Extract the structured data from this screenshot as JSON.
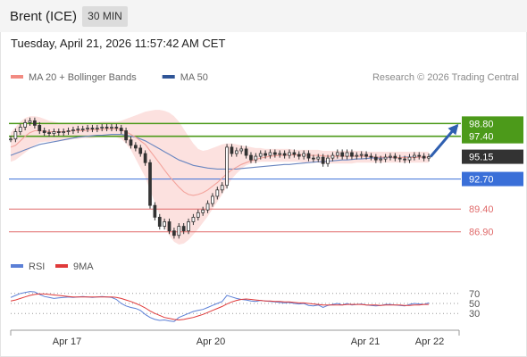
{
  "header": {
    "instrument": "Brent (ICE)",
    "timeframe": "30 MIN",
    "datetime": "Tuesday, April 21, 2026 11:57:42 AM CET",
    "copyright": "Research © 2026 Trading Central"
  },
  "legend": {
    "price": [
      {
        "label": "MA 20 + Bollinger Bands",
        "color": "#f28b82"
      },
      {
        "label": "MA 50",
        "color": "#2f5597"
      }
    ],
    "rsi": [
      {
        "label": "RSI",
        "color": "#5b7fd6"
      },
      {
        "label": "9MA",
        "color": "#e03a3a"
      }
    ]
  },
  "colors": {
    "resistance": "#4c9a1a",
    "pivot": "#3a6fd8",
    "support": "#e06a6a",
    "last_price": "#333333",
    "arrow": "#2f5fb0",
    "bollinger_fill": "#fbdcd9",
    "candle": "#333333"
  },
  "chart_data": [
    {
      "type": "candlestick",
      "title": "",
      "x_ticks": [
        "Apr 17",
        "Apr 20",
        "Apr 21",
        "Apr 22"
      ],
      "ylim": [
        85.3,
        100.8
      ],
      "levels": [
        {
          "value": 98.8,
          "label": "98.80",
          "kind": "resistance"
        },
        {
          "value": 97.4,
          "label": "97.40",
          "kind": "resistance"
        },
        {
          "value": 95.15,
          "label": "95.15",
          "kind": "last"
        },
        {
          "value": 92.7,
          "label": "92.70",
          "kind": "pivot"
        },
        {
          "value": 89.4,
          "label": "89.40",
          "kind": "support"
        },
        {
          "value": 86.9,
          "label": "86.90",
          "kind": "support"
        }
      ],
      "close": [
        97.1,
        97.9,
        98.4,
        98.9,
        99.1,
        98.6,
        98.0,
        97.8,
        97.7,
        97.9,
        97.8,
        97.9,
        98.0,
        98.1,
        98.2,
        98.2,
        98.3,
        98.2,
        98.3,
        98.4,
        98.3,
        98.4,
        98.3,
        98.0,
        97.0,
        96.4,
        96.1,
        95.5,
        94.5,
        89.8,
        88.5,
        87.5,
        88.0,
        87.0,
        86.5,
        87.5,
        87.0,
        88.0,
        88.5,
        89.0,
        89.3,
        90.0,
        90.8,
        91.5,
        92.0,
        96.2,
        95.5,
        95.8,
        96.0,
        95.3,
        94.8,
        95.2,
        95.5,
        95.3,
        95.6,
        95.4,
        95.5,
        95.3,
        95.6,
        95.4,
        95.2,
        95.5,
        95.0,
        94.9,
        95.1,
        94.4,
        95.0,
        95.3,
        95.6,
        95.2,
        95.6,
        95.2,
        95.3,
        95.4,
        95.2,
        95.1,
        94.8,
        94.9,
        95.1,
        95.2,
        95.0,
        94.9,
        94.8,
        95.1,
        95.3,
        95.2,
        95.0,
        95.15
      ],
      "ma20": [
        96.2,
        96.4,
        96.9,
        97.4,
        97.8,
        98.0,
        98.0,
        97.95,
        97.9,
        97.9,
        97.9,
        97.9,
        97.95,
        98.0,
        98.0,
        98.0,
        98.05,
        98.1,
        98.1,
        98.15,
        98.2,
        98.2,
        98.2,
        98.15,
        97.9,
        97.6,
        97.3,
        96.9,
        96.5,
        95.8,
        95.1,
        94.4,
        93.7,
        93.0,
        92.4,
        91.8,
        91.3,
        91.0,
        90.9,
        91.0,
        91.2,
        91.5,
        91.9,
        92.3,
        92.8,
        93.3,
        93.7,
        94.0,
        94.3,
        94.5,
        94.7,
        94.85,
        95.0,
        95.1,
        95.2,
        95.25,
        95.3,
        95.3,
        95.35,
        95.35,
        95.35,
        95.35,
        95.3,
        95.3,
        95.3,
        95.25,
        95.2,
        95.2,
        95.2,
        95.2,
        95.2,
        95.2,
        95.2,
        95.2,
        95.2,
        95.15,
        95.1,
        95.1,
        95.1,
        95.1,
        95.05,
        95.05,
        95.05,
        95.05,
        95.05,
        95.1,
        95.1,
        95.1
      ],
      "ma50": [
        95.3,
        95.5,
        95.7,
        95.9,
        96.1,
        96.3,
        96.5,
        96.6,
        96.7,
        96.8,
        96.9,
        97.0,
        97.1,
        97.2,
        97.3,
        97.35,
        97.4,
        97.45,
        97.5,
        97.5,
        97.55,
        97.6,
        97.6,
        97.6,
        97.5,
        97.4,
        97.3,
        97.1,
        96.9,
        96.6,
        96.3,
        96.0,
        95.7,
        95.4,
        95.1,
        94.8,
        94.6,
        94.4,
        94.2,
        94.1,
        94.0,
        93.9,
        93.85,
        93.8,
        93.8,
        93.8,
        93.8,
        93.8,
        93.85,
        93.9,
        93.95,
        94.0,
        94.05,
        94.1,
        94.15,
        94.2,
        94.25,
        94.3,
        94.3,
        94.35,
        94.4,
        94.45,
        94.5,
        94.55,
        94.6,
        94.6,
        94.65,
        94.7,
        94.75,
        94.8,
        94.8,
        94.85,
        94.9,
        94.9,
        94.95,
        95.0,
        95.0,
        95.0,
        95.05,
        95.05,
        95.05,
        95.05,
        95.1,
        95.1,
        95.1,
        95.1,
        95.1,
        95.1
      ],
      "bollinger_upper": [
        97.8,
        98.4,
        99.0,
        99.4,
        99.6,
        99.6,
        99.5,
        99.3,
        99.1,
        99.0,
        98.9,
        98.9,
        98.9,
        98.9,
        98.9,
        98.9,
        98.9,
        98.9,
        98.9,
        99.0,
        99.0,
        99.0,
        99.0,
        99.1,
        99.3,
        99.5,
        99.7,
        99.9,
        100.1,
        100.2,
        100.3,
        100.3,
        100.2,
        100.0,
        99.6,
        99.0,
        98.2,
        97.4,
        96.6,
        96.0,
        95.8,
        95.9,
        96.1,
        96.3,
        96.5,
        96.6,
        96.6,
        96.5,
        96.4,
        96.3,
        96.2,
        96.1,
        96.1,
        96.0,
        96.0,
        96.0,
        96.0,
        96.0,
        96.0,
        95.9,
        95.9,
        95.9,
        95.9,
        95.9,
        95.9,
        95.8,
        95.8,
        95.8,
        95.8,
        95.8,
        95.8,
        95.8,
        95.8,
        95.8,
        95.7,
        95.7,
        95.7,
        95.7,
        95.7,
        95.7,
        95.7,
        95.7,
        95.7,
        95.7,
        95.7,
        95.7,
        95.7,
        95.7
      ],
      "bollinger_lower": [
        94.6,
        94.8,
        95.2,
        95.6,
        96.0,
        96.4,
        96.7,
        96.8,
        96.8,
        96.9,
        96.9,
        96.9,
        97.0,
        97.1,
        97.1,
        97.2,
        97.2,
        97.2,
        97.3,
        97.3,
        97.3,
        97.3,
        97.3,
        97.1,
        96.6,
        95.9,
        94.9,
        93.9,
        92.9,
        91.5,
        90.1,
        88.7,
        87.5,
        86.5,
        85.8,
        85.5,
        85.6,
        86.0,
        86.6,
        87.2,
        87.9,
        88.6,
        89.4,
        90.2,
        91.0,
        91.9,
        92.7,
        93.3,
        93.8,
        94.2,
        94.4,
        94.5,
        94.6,
        94.6,
        94.6,
        94.6,
        94.6,
        94.6,
        94.6,
        94.6,
        94.6,
        94.5,
        94.5,
        94.5,
        94.5,
        94.4,
        94.4,
        94.4,
        94.4,
        94.4,
        94.4,
        94.4,
        94.5,
        94.5,
        94.5,
        94.5,
        94.5,
        94.5,
        94.5,
        94.5,
        94.5,
        94.5,
        94.5,
        94.5,
        94.5,
        94.5,
        94.5,
        94.5
      ]
    },
    {
      "type": "line",
      "title": "",
      "ylim": [
        0,
        100
      ],
      "reference_lines": [
        70,
        50,
        30
      ],
      "series": [
        {
          "name": "RSI",
          "values": [
            62,
            66,
            70,
            72,
            74,
            73,
            68,
            64,
            62,
            60,
            61,
            62,
            63,
            62,
            63,
            64,
            63,
            62,
            63,
            64,
            63,
            62,
            58,
            50,
            45,
            42,
            40,
            36,
            28,
            22,
            18,
            16,
            17,
            15,
            14,
            22,
            26,
            30,
            34,
            36,
            38,
            42,
            46,
            50,
            54,
            66,
            63,
            60,
            58,
            57,
            55,
            54,
            56,
            55,
            54,
            53,
            52,
            51,
            52,
            50,
            49,
            50,
            46,
            45,
            47,
            42,
            46,
            48,
            50,
            47,
            50,
            47,
            48,
            49,
            47,
            46,
            45,
            46,
            48,
            48,
            47,
            46,
            45,
            48,
            50,
            49,
            48,
            51
          ]
        },
        {
          "name": "9MA",
          "values": [
            55,
            57,
            60,
            63,
            66,
            68,
            69,
            69,
            68,
            67,
            66,
            65,
            64,
            63,
            63,
            63,
            63,
            63,
            63,
            63,
            63,
            63,
            62,
            60,
            57,
            54,
            50,
            46,
            41,
            35,
            30,
            26,
            22,
            20,
            18,
            17,
            18,
            20,
            22,
            25,
            28,
            32,
            36,
            40,
            44,
            49,
            53,
            56,
            58,
            59,
            58,
            57,
            56,
            55,
            55,
            54,
            54,
            53,
            53,
            52,
            51,
            51,
            50,
            49,
            48,
            47,
            47,
            47,
            47,
            47,
            48,
            48,
            48,
            48,
            47,
            47,
            47,
            46,
            47,
            47,
            47,
            47,
            46,
            46,
            47,
            47,
            48,
            48
          ]
        }
      ]
    }
  ]
}
